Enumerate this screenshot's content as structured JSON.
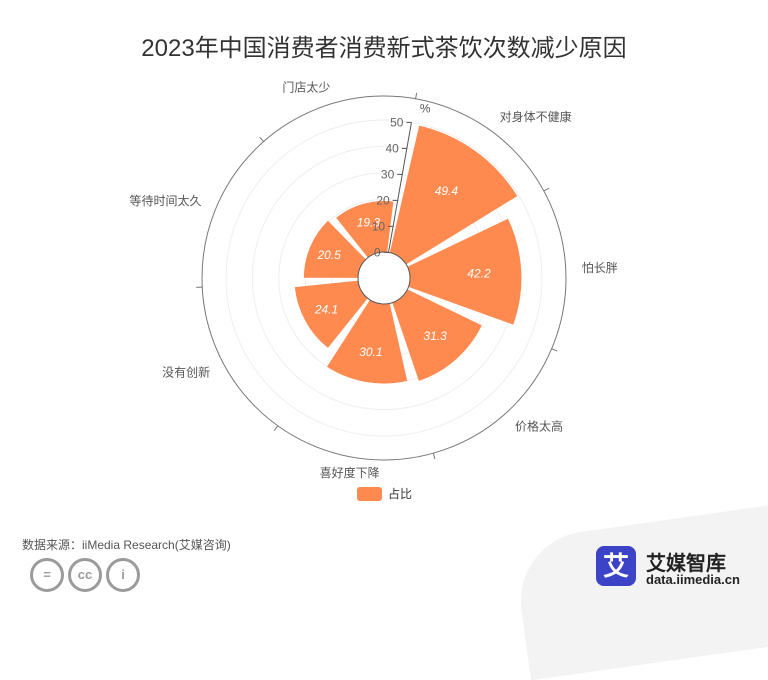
{
  "title": "2023年中国消费者消费新式茶饮次数减少原因",
  "source": "数据来源：iiMedia Research(艾媒咨询)",
  "brand": {
    "name": "艾媒智库",
    "url": "data.iimedia.cn",
    "logo_char": "艾"
  },
  "license_icons": [
    "equals-icon",
    "cc-icon",
    "person-icon"
  ],
  "chart_data": {
    "type": "bar",
    "subtype": "polar-bar",
    "categories": [
      "对身体不健康",
      "怕长胖",
      "价格太高",
      "喜好度下降",
      "没有创新",
      "等待时间太久",
      "门店太少"
    ],
    "series": [
      {
        "name": "占比",
        "values": [
          49.4,
          42.2,
          31.3,
          30.1,
          24.1,
          20.5,
          19.3
        ],
        "color": "#ff8a50"
      }
    ],
    "radial_axis": {
      "unit": "%",
      "ticks": [
        0,
        10,
        20,
        30,
        40,
        50
      ],
      "range": [
        0,
        50
      ]
    },
    "legend": "bottom-center",
    "grid": true
  }
}
